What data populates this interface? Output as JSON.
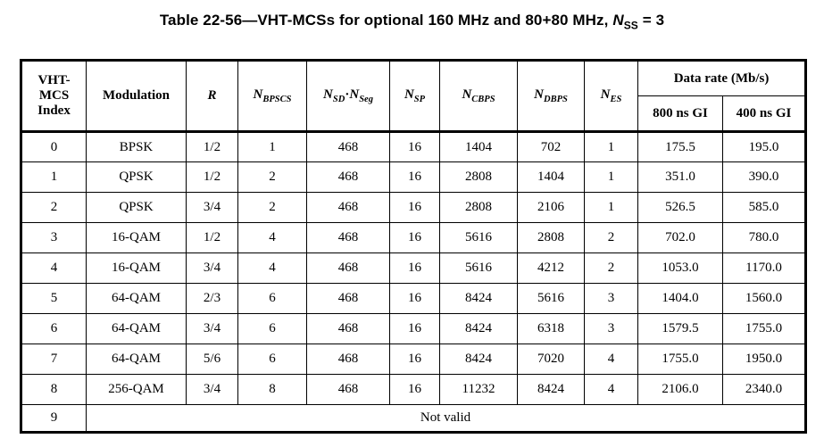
{
  "title": {
    "text_before": "Table 22-56—VHT-MCSs for optional 160 MHz and 80+80 MHz, ",
    "var_main": "N",
    "var_sub": "SS",
    "text_after": " = 3"
  },
  "table": {
    "header_segments": {
      "index": [
        {
          "t": "VHT-"
        },
        {
          "br": true
        },
        {
          "t": "MCS"
        },
        {
          "br": true
        },
        {
          "t": "Index"
        }
      ],
      "modulation": [
        {
          "t": "Modulation"
        }
      ],
      "r": [
        {
          "t": "R",
          "i": true
        }
      ],
      "n_bpscs": [
        {
          "t": "N",
          "i": true
        },
        {
          "t": "BPSCS",
          "i": true,
          "sub": true
        }
      ],
      "n_sd_nseg": [
        {
          "t": "N",
          "i": true
        },
        {
          "t": "SD",
          "i": true,
          "sub": true
        },
        {
          "t": "·"
        },
        {
          "t": "N",
          "i": true
        },
        {
          "t": "Seg",
          "i": true,
          "sub": true
        }
      ],
      "n_sp": [
        {
          "t": "N",
          "i": true
        },
        {
          "t": "SP",
          "i": true,
          "sub": true
        }
      ],
      "n_cbps": [
        {
          "t": "N",
          "i": true
        },
        {
          "t": "CBPS",
          "i": true,
          "sub": true
        }
      ],
      "n_dbps": [
        {
          "t": "N",
          "i": true
        },
        {
          "t": "DBPS",
          "i": true,
          "sub": true
        }
      ],
      "n_es": [
        {
          "t": "N",
          "i": true
        },
        {
          "t": "ES",
          "i": true,
          "sub": true
        }
      ]
    },
    "header": {
      "data_rate_group": "Data rate (Mb/s)",
      "gi_800": "800 ns GI",
      "gi_400": "400 ns GI"
    },
    "rows": [
      [
        "0",
        "BPSK",
        "1/2",
        "1",
        "468",
        "16",
        "1404",
        "702",
        "1",
        "175.5",
        "195.0"
      ],
      [
        "1",
        "QPSK",
        "1/2",
        "2",
        "468",
        "16",
        "2808",
        "1404",
        "1",
        "351.0",
        "390.0"
      ],
      [
        "2",
        "QPSK",
        "3/4",
        "2",
        "468",
        "16",
        "2808",
        "2106",
        "1",
        "526.5",
        "585.0"
      ],
      [
        "3",
        "16-QAM",
        "1/2",
        "4",
        "468",
        "16",
        "5616",
        "2808",
        "2",
        "702.0",
        "780.0"
      ],
      [
        "4",
        "16-QAM",
        "3/4",
        "4",
        "468",
        "16",
        "5616",
        "4212",
        "2",
        "1053.0",
        "1170.0"
      ],
      [
        "5",
        "64-QAM",
        "2/3",
        "6",
        "468",
        "16",
        "8424",
        "5616",
        "3",
        "1404.0",
        "1560.0"
      ],
      [
        "6",
        "64-QAM",
        "3/4",
        "6",
        "468",
        "16",
        "8424",
        "6318",
        "3",
        "1579.5",
        "1755.0"
      ],
      [
        "7",
        "64-QAM",
        "5/6",
        "6",
        "468",
        "16",
        "8424",
        "7020",
        "4",
        "1755.0",
        "1950.0"
      ],
      [
        "8",
        "256-QAM",
        "3/4",
        "8",
        "468",
        "16",
        "11232",
        "8424",
        "4",
        "2106.0",
        "2340.0"
      ]
    ],
    "not_valid": {
      "index": "9",
      "label": "Not valid"
    }
  }
}
